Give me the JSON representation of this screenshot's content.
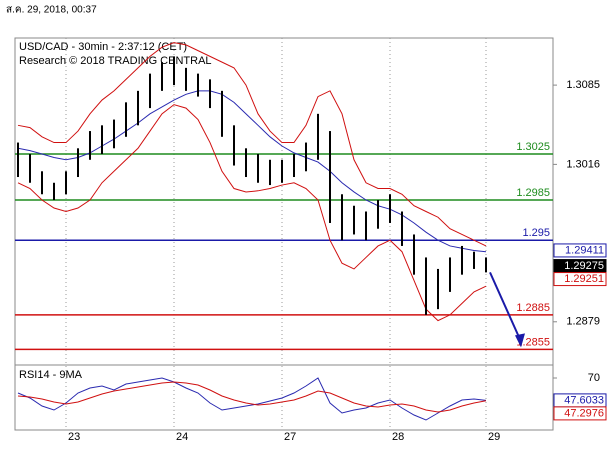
{
  "header": {
    "datetime": "ส.ค. 29, 2018, 00:37"
  },
  "chart_data": {
    "type": "ohlc",
    "title": "USD/CAD - 30min - 2:37:12 (CET)",
    "subtitle": "Research © 2018 TRADING CENTRAL",
    "categories": [
      null,
      null,
      null,
      null,
      "23",
      null,
      null,
      null,
      null,
      null,
      null,
      null,
      null,
      "24",
      null,
      null,
      null,
      null,
      null,
      null,
      null,
      null,
      "27",
      null,
      null,
      null,
      null,
      null,
      null,
      null,
      null,
      "28",
      null,
      null,
      null,
      null,
      null,
      null,
      null,
      "29"
    ],
    "high": [
      1.3035,
      1.3025,
      1.301,
      1.3,
      1.301,
      1.303,
      1.3045,
      1.305,
      1.3055,
      1.307,
      1.308,
      1.3095,
      1.3105,
      1.311,
      1.31,
      1.3095,
      1.309,
      1.308,
      1.305,
      1.303,
      1.3025,
      1.302,
      1.302,
      1.3025,
      1.3035,
      1.306,
      1.3045,
      1.299,
      1.298,
      1.2975,
      1.2985,
      1.299,
      1.2975,
      1.2955,
      1.2935,
      1.2925,
      1.2935,
      1.2945,
      1.294,
      1.2935
    ],
    "low": [
      1.3005,
      1.3,
      1.299,
      1.2985,
      1.299,
      1.3005,
      1.302,
      1.3025,
      1.303,
      1.304,
      1.305,
      1.3065,
      1.308,
      1.3085,
      1.308,
      1.3075,
      1.3065,
      1.304,
      1.3015,
      1.3005,
      1.3,
      1.2998,
      1.3,
      1.3005,
      1.301,
      1.302,
      1.2965,
      1.295,
      1.2955,
      1.295,
      1.296,
      1.2965,
      1.2945,
      1.292,
      1.2885,
      1.289,
      1.2905,
      1.292,
      1.2925,
      1.2922
    ],
    "color": "#000000",
    "overlays": [
      {
        "color": "#2a2ab0",
        "values": [
          1.303,
          1.3028,
          1.3025,
          1.3022,
          1.302,
          1.3022,
          1.3026,
          1.3032,
          1.3038,
          1.3045,
          1.3052,
          1.306,
          1.3066,
          1.3072,
          1.3077,
          1.308,
          1.308,
          1.3077,
          1.307,
          1.306,
          1.305,
          1.304,
          1.3032,
          1.3026,
          1.3022,
          1.3018,
          1.301,
          1.3,
          1.2992,
          1.2985,
          1.298,
          1.2977,
          1.2972,
          1.2965,
          1.2957,
          1.295,
          1.2945,
          1.2943,
          1.2941,
          1.294
        ]
      },
      {
        "color": "#d01010",
        "values": [
          1.305,
          1.3048,
          1.304,
          1.3035,
          1.3035,
          1.3045,
          1.306,
          1.3072,
          1.308,
          1.309,
          1.31,
          1.311,
          1.3118,
          1.3122,
          1.312,
          1.3115,
          1.311,
          1.3105,
          1.31,
          1.3085,
          1.306,
          1.3045,
          1.3035,
          1.3035,
          1.305,
          1.3075,
          1.308,
          1.306,
          1.302,
          1.3,
          1.2995,
          1.2995,
          1.299,
          1.298,
          1.2975,
          1.297,
          1.296,
          1.2955,
          1.295,
          1.2945
        ]
      },
      {
        "color": "#d01010",
        "values": [
          1.3,
          1.2995,
          1.2985,
          1.2978,
          1.2975,
          1.2978,
          1.2985,
          1.3,
          1.301,
          1.302,
          1.303,
          1.3045,
          1.306,
          1.3068,
          1.3065,
          1.3055,
          1.3035,
          1.301,
          1.2995,
          1.2992,
          1.2993,
          1.2995,
          1.2998,
          1.3,
          1.2995,
          1.2985,
          1.295,
          1.293,
          1.2925,
          1.2935,
          1.2945,
          1.295,
          1.294,
          1.2915,
          1.289,
          1.288,
          1.2885,
          1.2895,
          1.2905,
          1.291
        ]
      }
    ],
    "ylim": [
      1.2844,
      1.3126
    ],
    "yticks": [
      1.3085,
      1.3016,
      1.2879
    ],
    "grid": true,
    "levels": [
      {
        "value": 1.3025,
        "color": "#1e8c1e"
      },
      {
        "value": 1.2985,
        "color": "#1e8c1e"
      },
      {
        "value": 1.295,
        "color": "#1a1aa8"
      },
      {
        "value": 1.2885,
        "color": "#d01010"
      },
      {
        "value": 1.2855,
        "color": "#d01010"
      }
    ],
    "price_tags": [
      {
        "value": 1.29411,
        "color": "#1a1aa8"
      },
      {
        "value": 1.29275,
        "color": "#000000"
      },
      {
        "value": 1.29251,
        "color": "#d01010"
      }
    ],
    "rsi": {
      "title": "RSI14 - 9MA",
      "ylim": [
        20,
        80
      ],
      "yticks": [
        70
      ],
      "series": [
        {
          "color": "#2a2ab0",
          "values": [
            55,
            50,
            42,
            38,
            45,
            55,
            60,
            62,
            58,
            64,
            66,
            68,
            70,
            66,
            60,
            55,
            45,
            38,
            40,
            42,
            44,
            47,
            50,
            55,
            62,
            70,
            45,
            35,
            38,
            40,
            45,
            48,
            40,
            33,
            28,
            35,
            42,
            48,
            49,
            47.6
          ]
        },
        {
          "color": "#d01010",
          "values": [
            52,
            51,
            49,
            46,
            44,
            46,
            50,
            54,
            57,
            59,
            61,
            63,
            65,
            66,
            65,
            63,
            58,
            52,
            48,
            45,
            43,
            44,
            46,
            48,
            52,
            57,
            55,
            50,
            45,
            42,
            41,
            43,
            44,
            42,
            38,
            36,
            38,
            42,
            45,
            47.3
          ]
        }
      ],
      "tags": [
        {
          "value": 47.6033,
          "color": "#1a1aa8"
        },
        {
          "value": 47.2976,
          "color": "#d01010"
        }
      ]
    }
  }
}
